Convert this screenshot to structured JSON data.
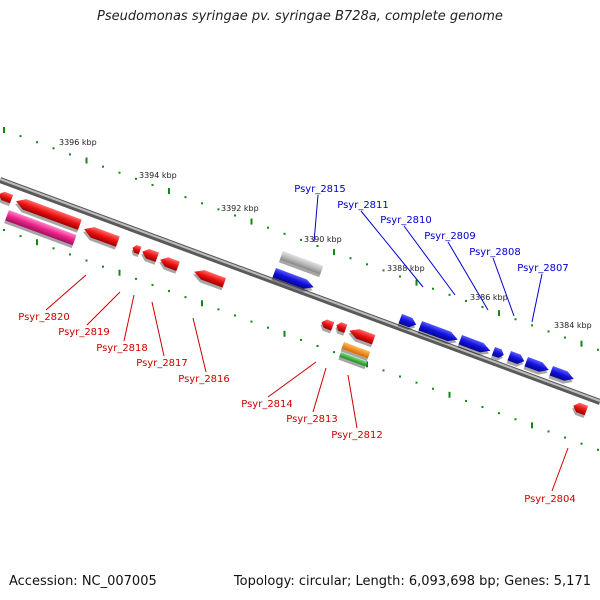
{
  "title": "Pseudomonas syringae pv. syringae B728a, complete genome",
  "footer": {
    "accession": "Accession: NC_007005",
    "topology": "Topology: circular; Length: 6,093,698 bp; Genes: 5,171"
  },
  "colors": {
    "forward_gene": "#1010dd",
    "reverse_gene": "#ee1111",
    "pseudogene": "#ee2288",
    "rna_gene": "#bbbbbb",
    "tick": "#118811",
    "backbone": "#888888",
    "orange": "#ff8800",
    "green": "#33bb33"
  },
  "kbp_marks": [
    "3396 kbp",
    "3394 kbp",
    "3392 kbp",
    "3390 kbp",
    "3388 kbp",
    "3386 kbp",
    "3384 kbp"
  ],
  "forward_labels": [
    "Psyr_2815",
    "Psyr_2811",
    "Psyr_2810",
    "Psyr_2809",
    "Psyr_2808",
    "Psyr_2807"
  ],
  "reverse_labels": [
    "Psyr_2820",
    "Psyr_2819",
    "Psyr_2818",
    "Psyr_2817",
    "Psyr_2816",
    "Psyr_2814",
    "Psyr_2813",
    "Psyr_2812",
    "Psyr_2804"
  ]
}
